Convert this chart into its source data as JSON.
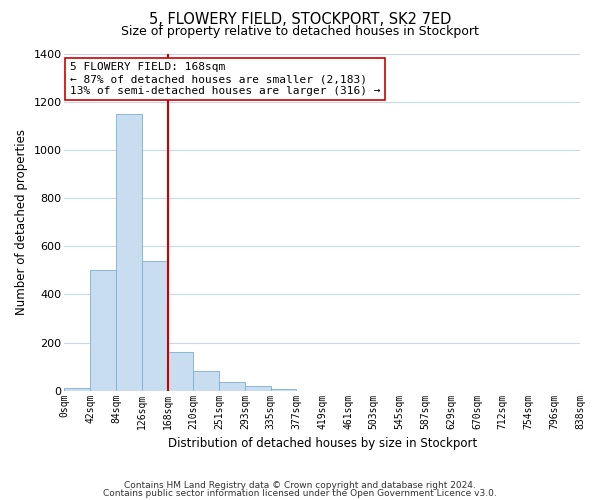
{
  "title": "5, FLOWERY FIELD, STOCKPORT, SK2 7ED",
  "subtitle": "Size of property relative to detached houses in Stockport",
  "xlabel": "Distribution of detached houses by size in Stockport",
  "ylabel": "Number of detached properties",
  "bar_color": "#c9ddf0",
  "bar_edge_color": "#7bafd4",
  "bin_labels": [
    "0sqm",
    "42sqm",
    "84sqm",
    "126sqm",
    "168sqm",
    "210sqm",
    "251sqm",
    "293sqm",
    "335sqm",
    "377sqm",
    "419sqm",
    "461sqm",
    "503sqm",
    "545sqm",
    "587sqm",
    "629sqm",
    "670sqm",
    "712sqm",
    "754sqm",
    "796sqm",
    "838sqm"
  ],
  "bar_heights": [
    10,
    500,
    1150,
    540,
    160,
    80,
    35,
    18,
    5,
    0,
    0,
    0,
    0,
    0,
    0,
    0,
    0,
    0,
    0,
    0
  ],
  "vline_x_index": 4,
  "vline_color": "#cc0000",
  "ylim": [
    0,
    1400
  ],
  "yticks": [
    0,
    200,
    400,
    600,
    800,
    1000,
    1200,
    1400
  ],
  "annotation_lines": [
    "5 FLOWERY FIELD: 168sqm",
    "← 87% of detached houses are smaller (2,183)",
    "13% of semi-detached houses are larger (316) →"
  ],
  "footer_line1": "Contains HM Land Registry data © Crown copyright and database right 2024.",
  "footer_line2": "Contains public sector information licensed under the Open Government Licence v3.0.",
  "background_color": "#ffffff",
  "grid_color": "#c8d8e8"
}
